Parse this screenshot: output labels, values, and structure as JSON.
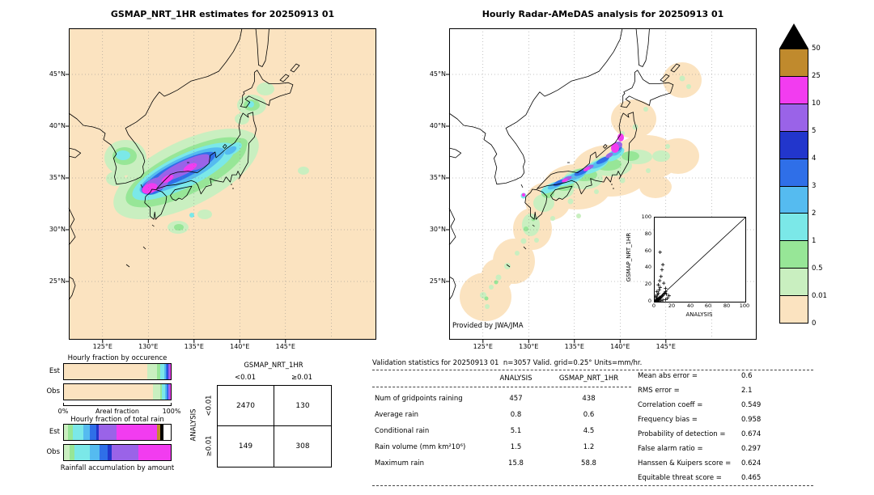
{
  "palette": {
    "peach": "#fbe3c0",
    "palegreen": "#c9efc0",
    "green": "#97e697",
    "cyan": "#7be8e8",
    "lightblue": "#55bbf0",
    "blue": "#2f6fe8",
    "darkblue": "#2236cc",
    "purple": "#9a63e8",
    "magenta": "#f23cf0",
    "ochre": "#c08a2d",
    "over": "#000000",
    "white": "#ffffff"
  },
  "left_map": {
    "title": "GSMAP_NRT_1HR estimates for 20250913 01",
    "lat_ticks": [
      "45°N",
      "40°N",
      "35°N",
      "30°N",
      "25°N"
    ],
    "lon_ticks": [
      "125°E",
      "130°E",
      "135°E",
      "140°E",
      "145°E"
    ]
  },
  "right_map": {
    "title": "Hourly Radar-AMeDAS analysis for 20250913 01",
    "lat_ticks": [
      "45°N",
      "40°N",
      "35°N",
      "30°N",
      "25°N"
    ],
    "lon_ticks": [
      "125°E",
      "130°E",
      "135°E",
      "140°E",
      "145°E"
    ],
    "credit": "Provided by JWA/JMA",
    "inset": {
      "xlabel": "ANALYSIS",
      "ylabel": "GSMAP_NRT_1HR",
      "ticks": [
        "0",
        "20",
        "40",
        "60",
        "80",
        "100"
      ]
    }
  },
  "colorbar": {
    "labels": [
      "50",
      "25",
      "10",
      "5",
      "4",
      "3",
      "2",
      "1",
      "0.5",
      "0.01",
      "0"
    ],
    "bands": [
      "ochre",
      "magenta",
      "purple",
      "darkblue",
      "blue",
      "lightblue",
      "cyan",
      "green",
      "palegreen",
      "peach"
    ]
  },
  "fractions": {
    "occurrence_title": "Hourly fraction by occurence",
    "total_title": "Hourly fraction of total rain",
    "bottom_label": "Rainfall accumulation by amount",
    "axis": {
      "left": "0%",
      "label": "Areal fraction",
      "right": "100%"
    },
    "est_label": "Est",
    "obs_label": "Obs",
    "occurrence": {
      "est": [
        [
          "peach",
          77.8
        ],
        [
          "palegreen",
          9.5
        ],
        [
          "green",
          2.5
        ],
        [
          "cyan",
          4
        ],
        [
          "lightblue",
          2
        ],
        [
          "blue",
          1.5
        ],
        [
          "darkblue",
          0.7
        ],
        [
          "purple",
          1.4
        ],
        [
          "magenta",
          0.5
        ],
        [
          "ochre",
          0.1
        ]
      ],
      "obs": [
        [
          "peach",
          83.5
        ],
        [
          "palegreen",
          6.5
        ],
        [
          "green",
          2
        ],
        [
          "cyan",
          3
        ],
        [
          "lightblue",
          1.5
        ],
        [
          "blue",
          1
        ],
        [
          "darkblue",
          0.5
        ],
        [
          "purple",
          1.2
        ],
        [
          "magenta",
          0.7
        ],
        [
          "ochre",
          0.1
        ]
      ]
    },
    "total": {
      "est": [
        [
          "palegreen",
          4
        ],
        [
          "green",
          4
        ],
        [
          "cyan",
          10
        ],
        [
          "lightblue",
          6
        ],
        [
          "blue",
          6
        ],
        [
          "darkblue",
          3
        ],
        [
          "purple",
          16
        ],
        [
          "magenta",
          38
        ],
        [
          "ochre",
          3
        ],
        [
          "over",
          3
        ],
        [
          "white",
          7
        ]
      ],
      "obs": [
        [
          "palegreen",
          5
        ],
        [
          "green",
          5
        ],
        [
          "cyan",
          14
        ],
        [
          "lightblue",
          9
        ],
        [
          "blue",
          8
        ],
        [
          "darkblue",
          4
        ],
        [
          "purple",
          25
        ],
        [
          "magenta",
          30
        ]
      ]
    }
  },
  "contingency": {
    "col_header": "GSMAP_NRT_1HR",
    "row_header": "ANALYSIS",
    "col_labels": [
      "<0.01",
      "≥0.01"
    ],
    "row_labels": [
      "<0.01",
      "≥0.01"
    ],
    "cells": [
      [
        "2470",
        "130"
      ],
      [
        "149",
        "308"
      ]
    ]
  },
  "stats": {
    "title": "Validation statistics for 20250913 01  n=3057 Valid. grid=0.25° Units=mm/hr.",
    "col_headers": [
      "ANALYSIS",
      "GSMAP_NRT_1HR"
    ],
    "rows": [
      {
        "label": "Num of gridpoints raining",
        "analysis": "457",
        "gsmap": "438"
      },
      {
        "label": "Average rain",
        "analysis": "0.8",
        "gsmap": "0.6"
      },
      {
        "label": "Conditional rain",
        "analysis": "5.1",
        "gsmap": "4.5"
      },
      {
        "label": "Rain volume (mm km²10⁶)",
        "analysis": "1.5",
        "gsmap": "1.2"
      },
      {
        "label": "Maximum rain",
        "analysis": "15.8",
        "gsmap": "58.8"
      }
    ],
    "scores": [
      {
        "label": "Mean abs error =",
        "value": "0.6"
      },
      {
        "label": "RMS error =",
        "value": "2.1"
      },
      {
        "label": "Correlation coeff =",
        "value": "0.549"
      },
      {
        "label": "Frequency bias =",
        "value": "0.958"
      },
      {
        "label": "Probability of detection =",
        "value": "0.674"
      },
      {
        "label": "False alarm ratio =",
        "value": "0.297"
      },
      {
        "label": "Hanssen & Kuipers score =",
        "value": "0.624"
      },
      {
        "label": "Equitable threat score =",
        "value": "0.465"
      }
    ]
  },
  "chart_data": [
    {
      "type": "heatmap",
      "panel": "left",
      "title": "GSMAP_NRT_1HR estimates for 20250913 01",
      "x_ticks": [
        "125°E",
        "130°E",
        "135°E",
        "140°E",
        "145°E"
      ],
      "y_ticks": [
        "45°N",
        "40°N",
        "35°N",
        "30°N",
        "25°N"
      ],
      "units": "mm/hr",
      "levels": [
        0,
        0.01,
        0.5,
        1,
        2,
        3,
        4,
        5,
        10,
        25,
        50
      ],
      "description": "Satellite rain band stretching NE from NW Kyushu across Chugoku to Chubu with 5-25 mm/hr purple/magenta cores; light rain patches over Korea, southern Hokkaido and seas south of Japan; background field < 0.01 mm/hr."
    },
    {
      "type": "heatmap",
      "panel": "right",
      "title": "Hourly Radar-AMeDAS analysis for 20250913 01",
      "x_ticks": [
        "125°E",
        "130°E",
        "135°E",
        "140°E",
        "145°E"
      ],
      "y_ticks": [
        "45°N",
        "40°N",
        "35°N",
        "30°N",
        "25°N"
      ],
      "units": "mm/hr",
      "levels": [
        0,
        0.01,
        0.5,
        1,
        2,
        3,
        4,
        5,
        10,
        25,
        50
      ],
      "description": "Radar-AMeDAS light-rain swath from Okinawa NE across western/central Japan; narrow intense band (5-25 mm/hr) along the Japan Sea coast of Honshu with magenta maxima near 139-140E 37-38N; no data (white) outside radar coverage."
    },
    {
      "type": "scatter",
      "title": "GSMAP_NRT_1HR vs ANALYSIS inset",
      "xlabel": "ANALYSIS",
      "ylabel": "GSMAP_NRT_1HR",
      "xlim": [
        0,
        100
      ],
      "ylim": [
        0,
        100
      ],
      "x_ticks": [
        0,
        20,
        40,
        60,
        80,
        100
      ],
      "y_ticks": [
        0,
        20,
        40,
        60,
        80,
        100
      ],
      "identity_line": true,
      "points": [
        [
          0.3,
          0.4
        ],
        [
          0.8,
          1.2
        ],
        [
          1.5,
          0.6
        ],
        [
          1,
          2
        ],
        [
          2,
          1
        ],
        [
          2.4,
          2.8
        ],
        [
          3,
          1.8
        ],
        [
          3.5,
          3
        ],
        [
          4,
          2
        ],
        [
          4.6,
          4.4
        ],
        [
          5,
          3
        ],
        [
          5.6,
          5
        ],
        [
          6,
          4
        ],
        [
          7,
          5.5
        ],
        [
          8,
          6.5
        ],
        [
          9,
          7.5
        ],
        [
          10,
          9
        ],
        [
          11,
          10
        ],
        [
          12,
          12
        ],
        [
          13,
          9
        ],
        [
          15.8,
          7
        ],
        [
          14,
          4
        ],
        [
          12,
          2.5
        ],
        [
          9,
          2
        ],
        [
          7,
          1.2
        ],
        [
          5,
          0.8
        ],
        [
          2,
          5
        ],
        [
          1,
          6.5
        ],
        [
          3,
          8
        ],
        [
          4,
          10
        ],
        [
          2.5,
          12
        ],
        [
          5,
          14
        ],
        [
          6,
          17
        ],
        [
          4,
          20
        ],
        [
          5.5,
          25
        ],
        [
          7,
          30
        ],
        [
          9,
          44
        ],
        [
          6,
          58.8
        ],
        [
          8,
          38
        ],
        [
          10,
          22
        ],
        [
          12,
          16
        ]
      ]
    },
    {
      "type": "bar",
      "title": "Hourly fraction by occurence / of total rain",
      "categories": [
        "Est",
        "Obs"
      ],
      "note": "stacked horizontal bars; segment colors follow the mm/hr color scale; segment widths stored in fractions key"
    },
    {
      "type": "table",
      "title": "Contingency table (ANALYSIS rows x GSMAP_NRT_1HR columns)",
      "columns": [
        "<0.01",
        "≥0.01"
      ],
      "rows": [
        [
          "2470",
          "130"
        ],
        [
          "149",
          "308"
        ]
      ]
    }
  ]
}
